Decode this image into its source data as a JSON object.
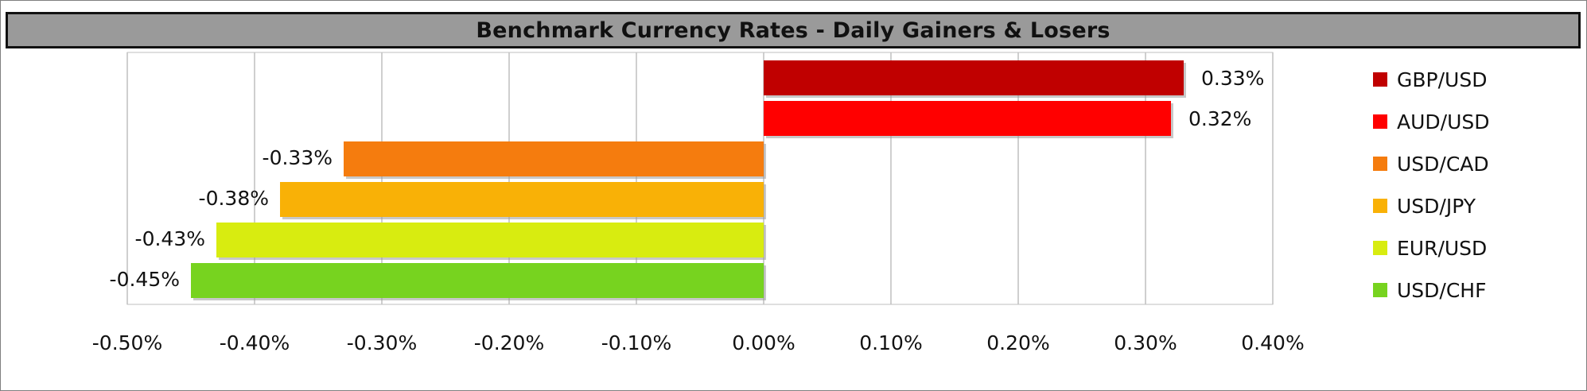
{
  "chart_data": {
    "type": "bar",
    "orientation": "horizontal",
    "title": "Benchmark Currency Rates - Daily Gainers & Losers",
    "xlabel": "",
    "ylabel": "",
    "xlim": [
      -0.5,
      0.4
    ],
    "x_ticks": [
      -0.5,
      -0.4,
      -0.3,
      -0.2,
      -0.1,
      0.0,
      0.1,
      0.2,
      0.3,
      0.4
    ],
    "x_tick_labels": [
      "-0.50%",
      "-0.40%",
      "-0.30%",
      "-0.20%",
      "-0.10%",
      "0.00%",
      "0.10%",
      "0.20%",
      "0.30%",
      "0.40%"
    ],
    "grid": "vertical",
    "legend_position": "right",
    "categories": [
      "GBP/USD",
      "AUD/USD",
      "USD/CAD",
      "USD/JPY",
      "EUR/USD",
      "USD/CHF"
    ],
    "values": [
      0.33,
      0.32,
      -0.33,
      -0.38,
      -0.43,
      -0.45
    ],
    "value_labels": [
      "0.33%",
      "0.32%",
      "-0.33%",
      "-0.38%",
      "-0.43%",
      "-0.45%"
    ],
    "colors": [
      "#c00000",
      "#ff0000",
      "#f57c0e",
      "#f9b106",
      "#d8ec10",
      "#77d31f"
    ]
  }
}
